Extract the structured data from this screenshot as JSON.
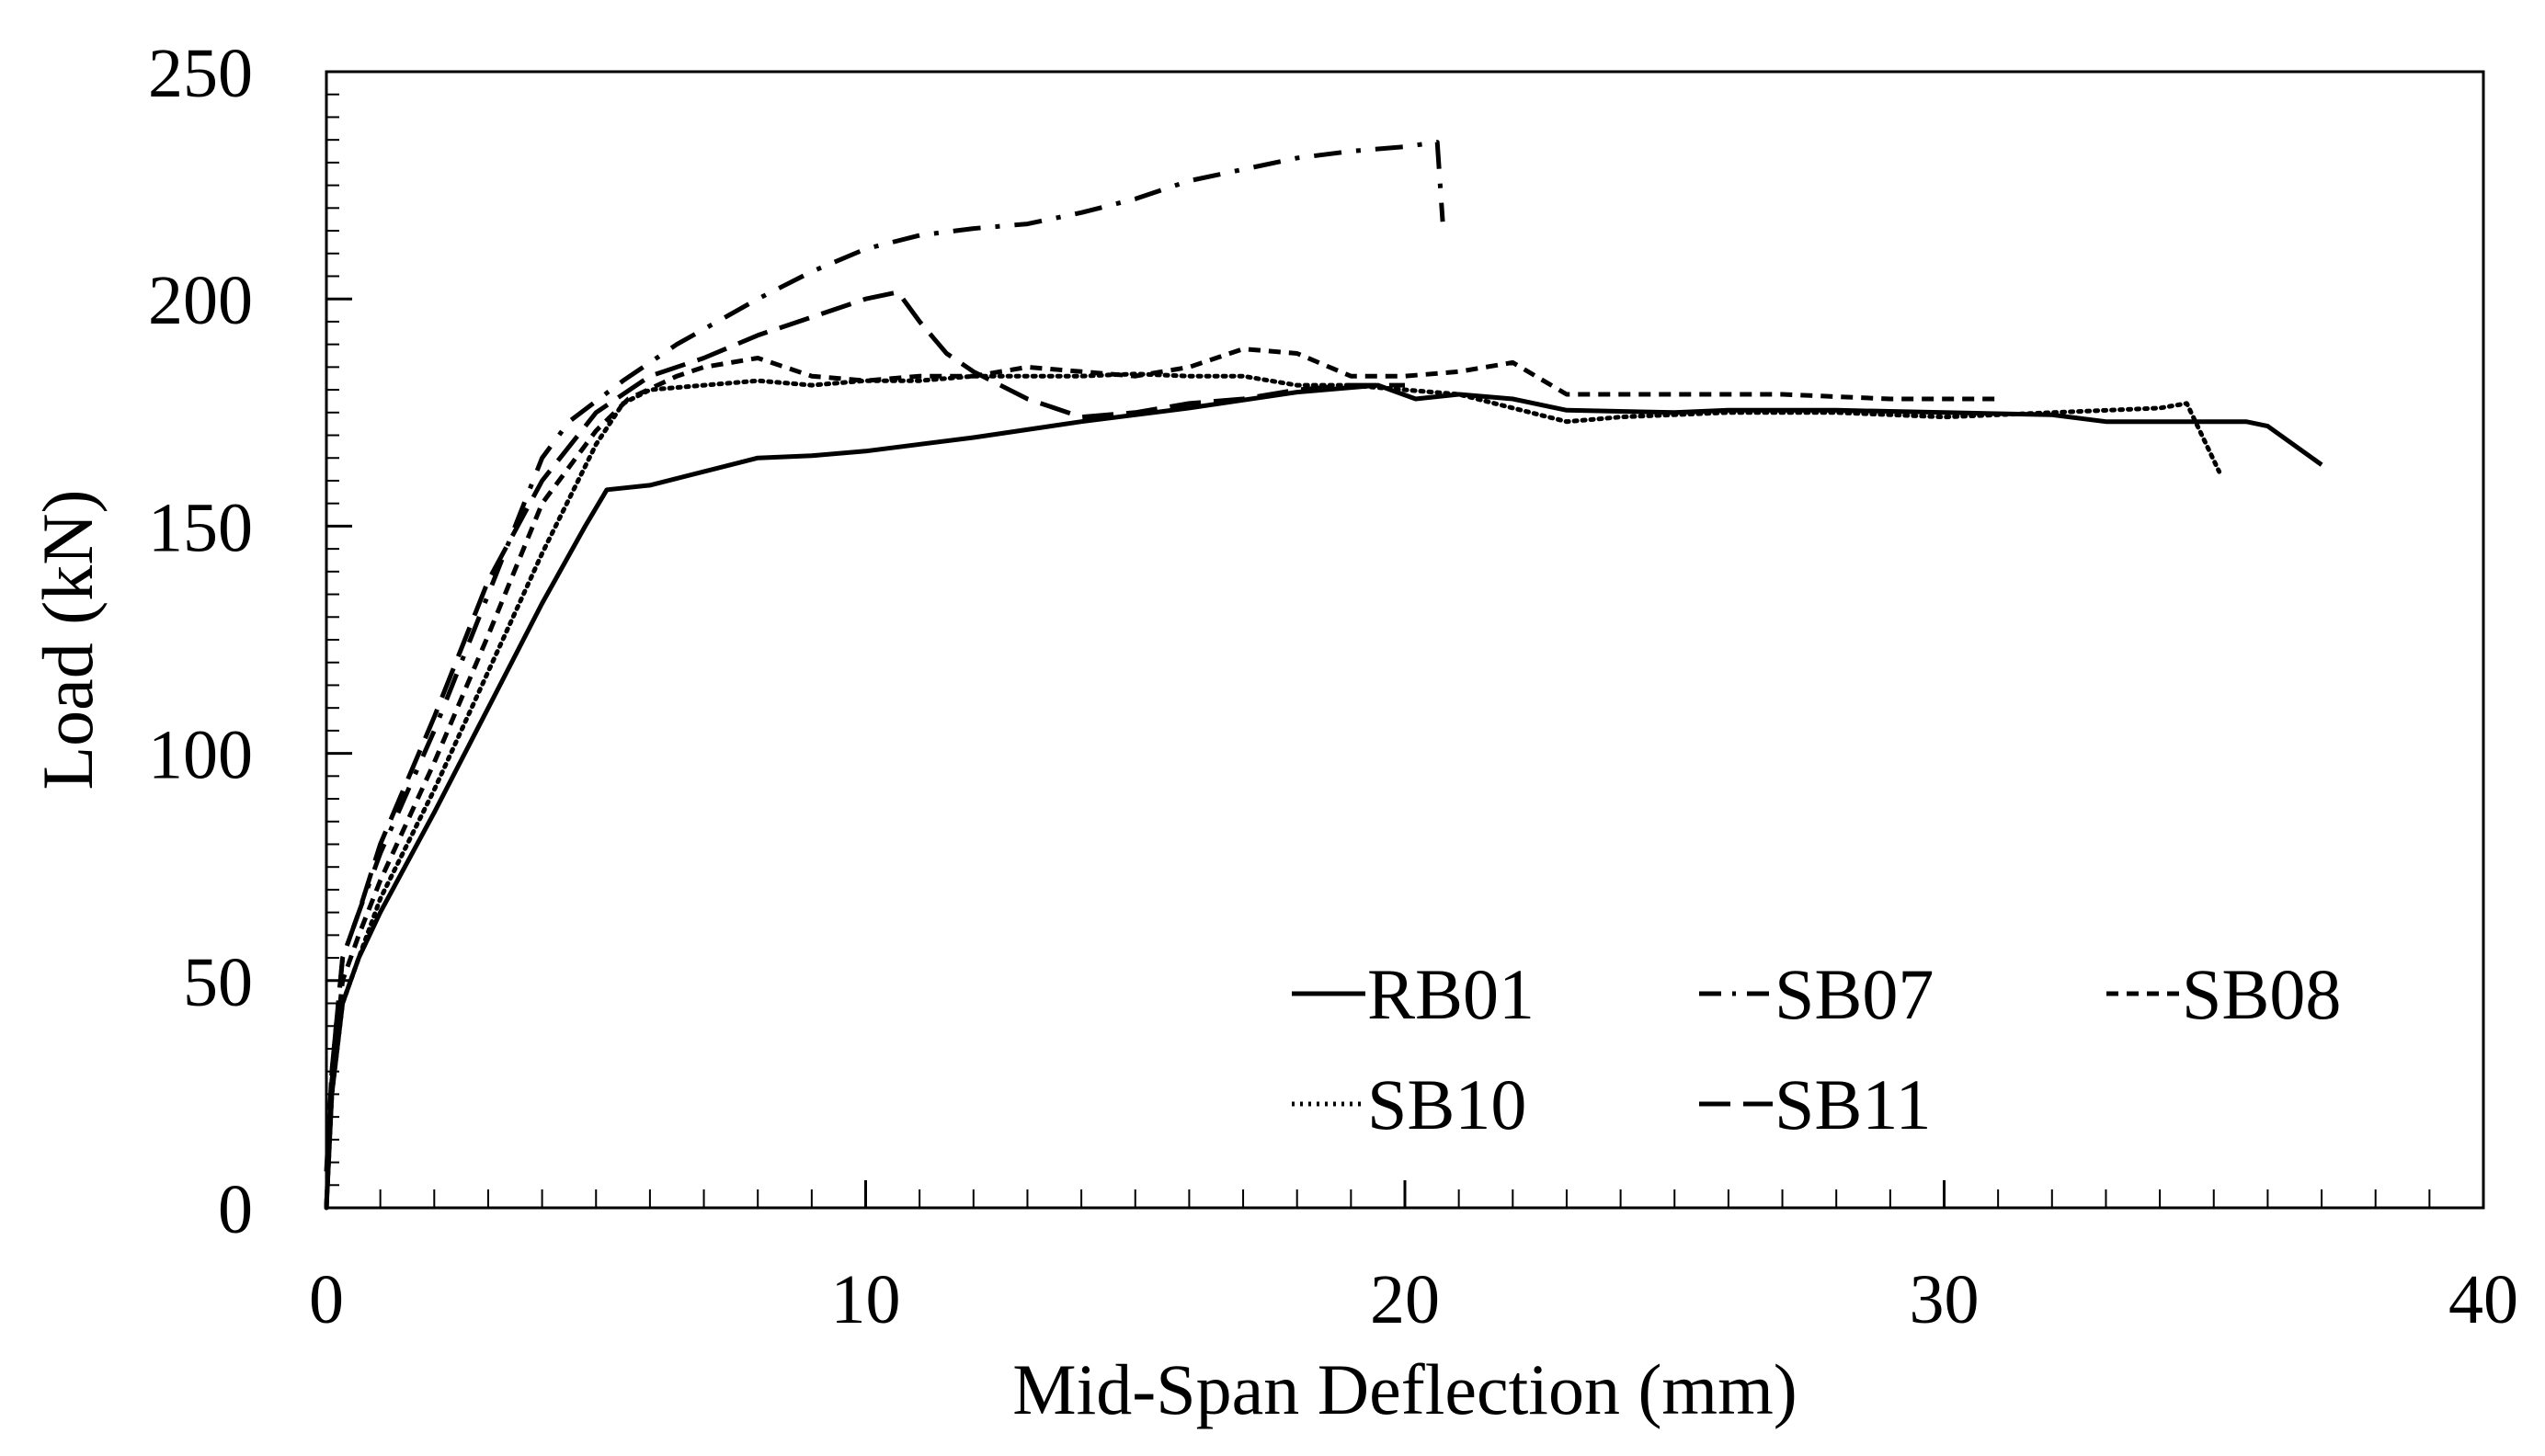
{
  "chart_data": {
    "type": "line",
    "title": "",
    "xlabel": "Mid-Span Deflection (mm)",
    "ylabel": "Load (kN)",
    "xlim": [
      0,
      40
    ],
    "ylim": [
      0,
      250
    ],
    "x_ticks": [
      0,
      10,
      20,
      30,
      40
    ],
    "y_ticks": [
      0,
      50,
      100,
      150,
      200,
      250
    ],
    "x_minor_step": 1,
    "y_minor_step": 5,
    "grid": false,
    "legend_position": "bottom-right",
    "line_color": "#000000",
    "series": [
      {
        "name": "RB01",
        "style": "solid",
        "points": [
          [
            0,
            0
          ],
          [
            0.1,
            25
          ],
          [
            0.3,
            45
          ],
          [
            0.6,
            55
          ],
          [
            1,
            65
          ],
          [
            2,
            87
          ],
          [
            3,
            110
          ],
          [
            4,
            133
          ],
          [
            4.8,
            150
          ],
          [
            5.2,
            158
          ],
          [
            6,
            159
          ],
          [
            7,
            162
          ],
          [
            8,
            165
          ],
          [
            9,
            165.5
          ],
          [
            10,
            166.5
          ],
          [
            12,
            169.5
          ],
          [
            14,
            173
          ],
          [
            16,
            176
          ],
          [
            18,
            179.5
          ],
          [
            19.5,
            181
          ],
          [
            20.2,
            178
          ],
          [
            21,
            179
          ],
          [
            22,
            178
          ],
          [
            23,
            175.5
          ],
          [
            25,
            175
          ],
          [
            26,
            175.5
          ],
          [
            28,
            175.5
          ],
          [
            30,
            175
          ],
          [
            32,
            174.5
          ],
          [
            33,
            173
          ],
          [
            35.6,
            173
          ],
          [
            36,
            172
          ],
          [
            37,
            163.5
          ]
        ]
      },
      {
        "name": "SB07",
        "style": "dashdot",
        "points": [
          [
            0,
            8
          ],
          [
            0.1,
            30
          ],
          [
            0.3,
            55
          ],
          [
            0.6,
            65
          ],
          [
            1,
            78
          ],
          [
            2,
            105
          ],
          [
            3,
            135
          ],
          [
            4,
            165
          ],
          [
            4.5,
            173
          ],
          [
            5.5,
            182
          ],
          [
            6.5,
            190
          ],
          [
            8,
            200
          ],
          [
            9,
            206
          ],
          [
            10,
            211
          ],
          [
            11,
            214
          ],
          [
            12,
            215.5
          ],
          [
            13,
            216.5
          ],
          [
            14,
            219
          ],
          [
            15,
            222
          ],
          [
            16,
            226
          ],
          [
            17,
            228.5
          ],
          [
            18,
            231
          ],
          [
            19,
            232.5
          ],
          [
            20,
            233.5
          ],
          [
            20.6,
            234.5
          ],
          [
            20.7,
            217
          ]
        ]
      },
      {
        "name": "SB08",
        "style": "shortdash",
        "points": [
          [
            0,
            0
          ],
          [
            0.1,
            28
          ],
          [
            0.3,
            50
          ],
          [
            0.6,
            60
          ],
          [
            1,
            72
          ],
          [
            2,
            98
          ],
          [
            3,
            126
          ],
          [
            4,
            155
          ],
          [
            5,
            171
          ],
          [
            5.6,
            178
          ],
          [
            6.5,
            183
          ],
          [
            7,
            185
          ],
          [
            8,
            187
          ],
          [
            9,
            183
          ],
          [
            10,
            182
          ],
          [
            11,
            183
          ],
          [
            12,
            183
          ],
          [
            13,
            185
          ],
          [
            14,
            184
          ],
          [
            15,
            183
          ],
          [
            16,
            185
          ],
          [
            17,
            189
          ],
          [
            18,
            188
          ],
          [
            19,
            183
          ],
          [
            20,
            183
          ],
          [
            21,
            184
          ],
          [
            22,
            186
          ],
          [
            23,
            179
          ],
          [
            25,
            179
          ],
          [
            27,
            179
          ],
          [
            29,
            178
          ],
          [
            31,
            178
          ]
        ]
      },
      {
        "name": "SB10",
        "style": "dotted",
        "points": [
          [
            0,
            0
          ],
          [
            0.1,
            25
          ],
          [
            0.3,
            45
          ],
          [
            0.6,
            55
          ],
          [
            1,
            68
          ],
          [
            2,
            92
          ],
          [
            3,
            118
          ],
          [
            4,
            144
          ],
          [
            5,
            168
          ],
          [
            5.5,
            177
          ],
          [
            6,
            180
          ],
          [
            7,
            181
          ],
          [
            8,
            182
          ],
          [
            9,
            181
          ],
          [
            10,
            182
          ],
          [
            11,
            182
          ],
          [
            12,
            183
          ],
          [
            13,
            183
          ],
          [
            14,
            183
          ],
          [
            15,
            183.5
          ],
          [
            16,
            183
          ],
          [
            17,
            183
          ],
          [
            18,
            181
          ],
          [
            19,
            181
          ],
          [
            20,
            180
          ],
          [
            21,
            179
          ],
          [
            22,
            176
          ],
          [
            23,
            173
          ],
          [
            24,
            174
          ],
          [
            26,
            175
          ],
          [
            28,
            175
          ],
          [
            30,
            174
          ],
          [
            32,
            175
          ],
          [
            34,
            176
          ],
          [
            34.5,
            177
          ],
          [
            35.1,
            162
          ]
        ]
      },
      {
        "name": "SB11",
        "style": "longdash",
        "points": [
          [
            0,
            0
          ],
          [
            0.1,
            30
          ],
          [
            0.3,
            55
          ],
          [
            0.6,
            65
          ],
          [
            1,
            80
          ],
          [
            2,
            108
          ],
          [
            3,
            138
          ],
          [
            4,
            160
          ],
          [
            5,
            175
          ],
          [
            6,
            183
          ],
          [
            7,
            187
          ],
          [
            8,
            192
          ],
          [
            9,
            196
          ],
          [
            10,
            200
          ],
          [
            10.6,
            201.5
          ],
          [
            11,
            195
          ],
          [
            11.5,
            188
          ],
          [
            12,
            184
          ],
          [
            13,
            178
          ],
          [
            14,
            174
          ],
          [
            15,
            175
          ],
          [
            16,
            177
          ],
          [
            17,
            178
          ],
          [
            18,
            180
          ],
          [
            19,
            181
          ],
          [
            20,
            181
          ]
        ]
      }
    ]
  }
}
